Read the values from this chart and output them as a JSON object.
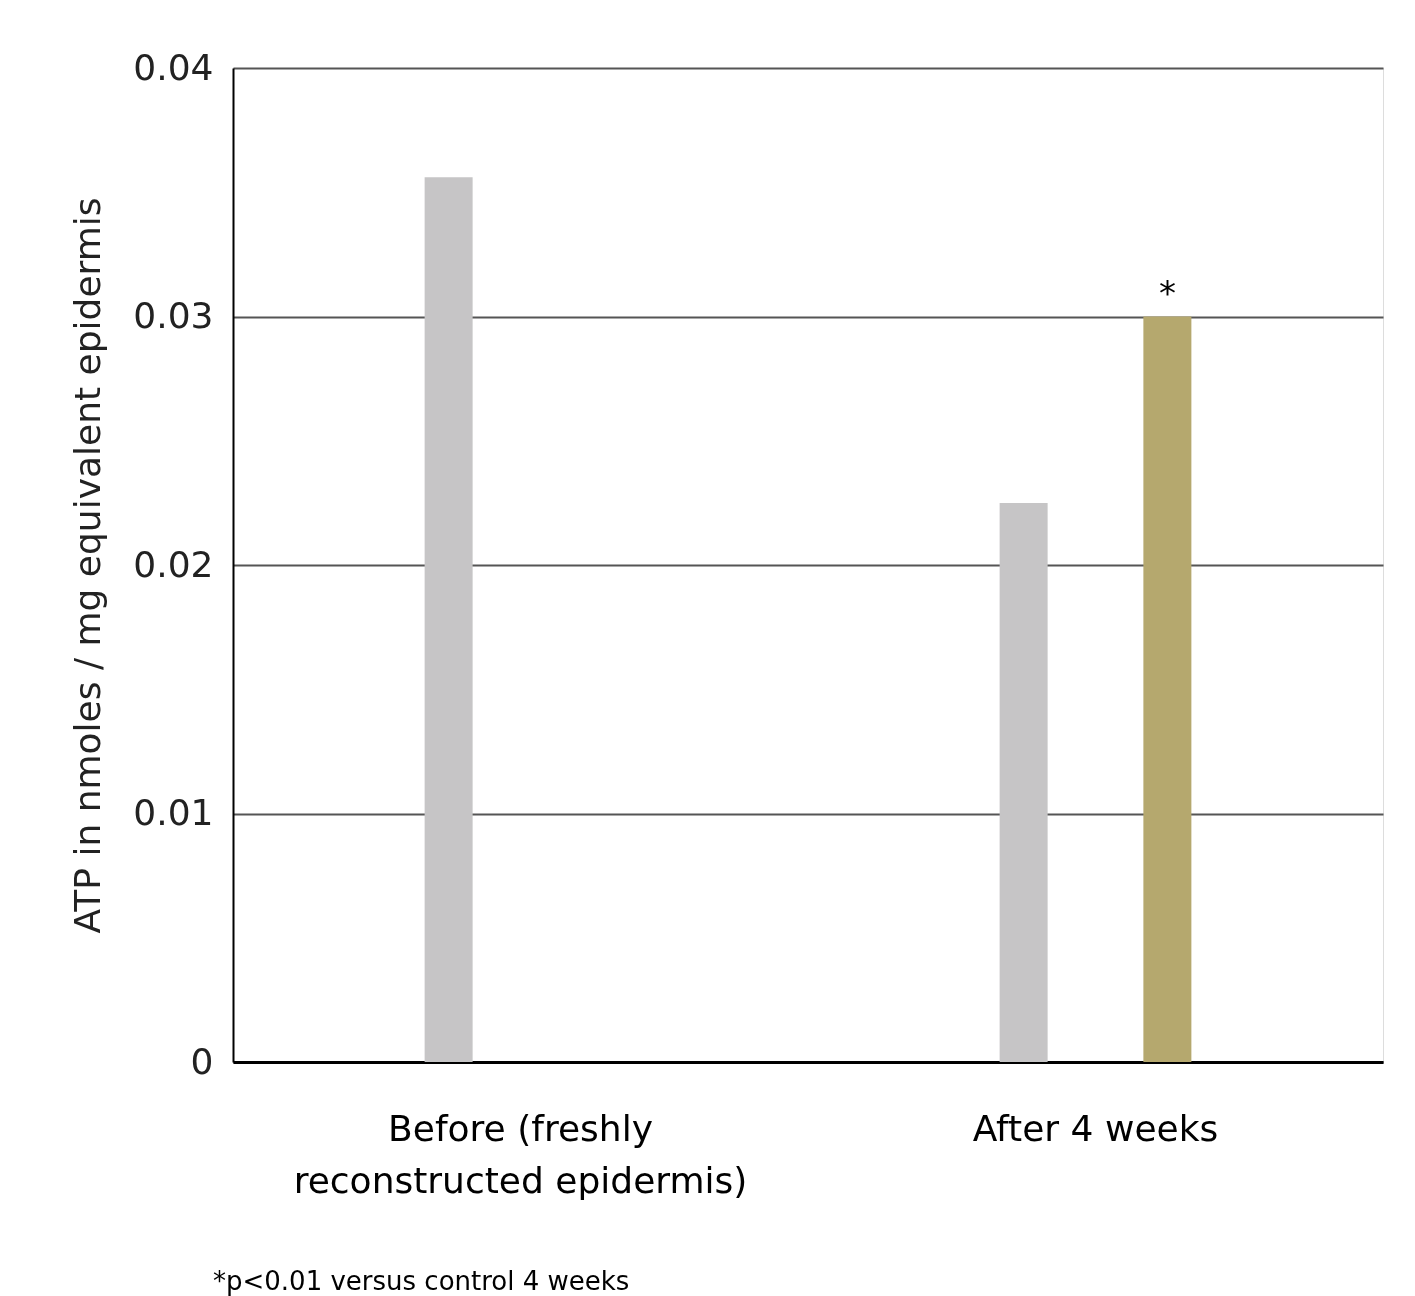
{
  "chart_data": {
    "type": "bar",
    "ylabel": "ATP in nmoles / mg equivalent epidermis",
    "categories": [
      "Before (freshly\nreconstructed epidermis)",
      "After 4 weeks"
    ],
    "series": [
      {
        "color": "#c6c5c6",
        "values": [
          0.0356,
          0.0225
        ]
      },
      {
        "color": "#b5a86e",
        "values": [
          null,
          0.03
        ]
      }
    ],
    "ylim": [
      0,
      0.04
    ],
    "yticks": [
      0,
      0.01,
      0.02,
      0.03,
      0.04
    ],
    "grid": "y",
    "legend": false,
    "annotations": [
      "*",
      "*p<0.01 versus control 4 weeks"
    ]
  }
}
